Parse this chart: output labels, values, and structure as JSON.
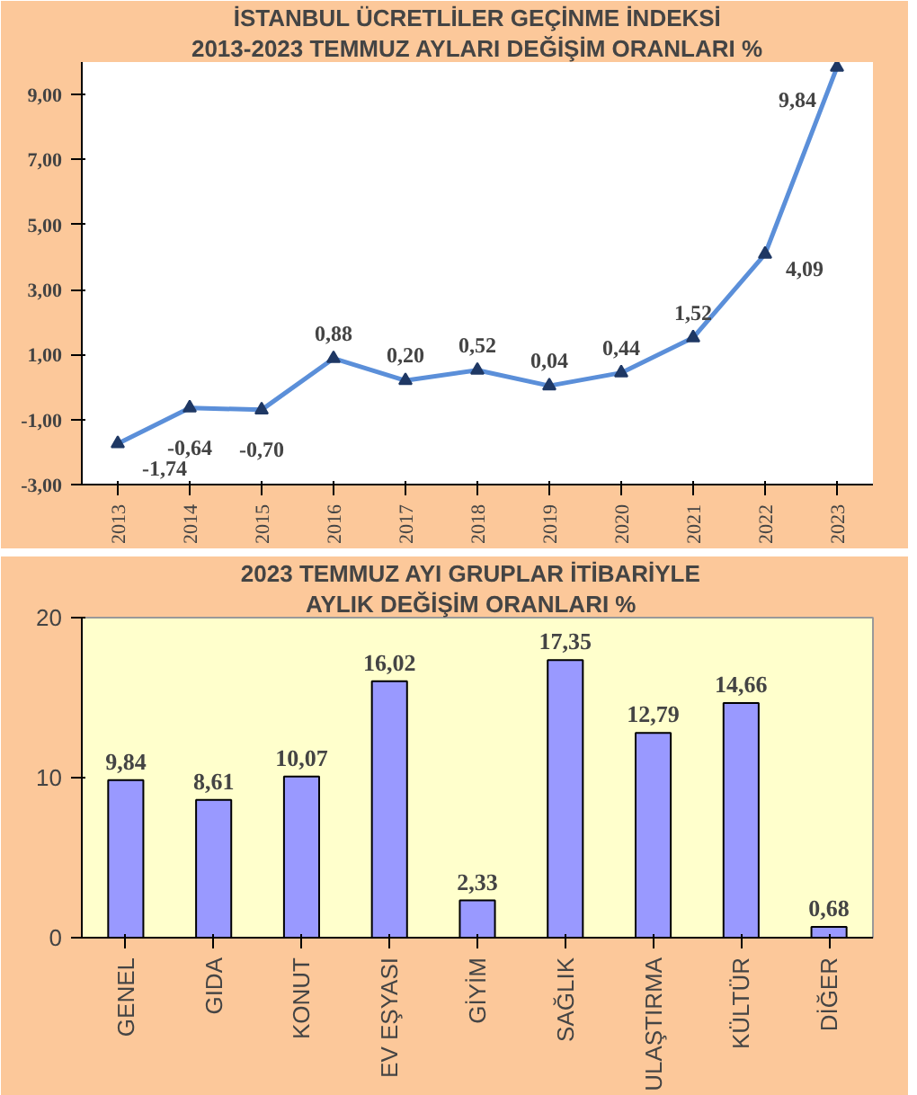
{
  "chart_data": [
    {
      "type": "line",
      "title": "İSTANBUL ÜCRETLİLER GEÇİNME İNDEKSİ",
      "subtitle": "2013-2023 TEMMUZ AYLARI DEĞİŞİM ORANLARI %",
      "categories": [
        "2013",
        "2014",
        "2015",
        "2016",
        "2017",
        "2018",
        "2019",
        "2020",
        "2021",
        "2022",
        "2023"
      ],
      "series": [
        {
          "color": "#5b8fd9",
          "values": [
            -1.74,
            -0.64,
            -0.7,
            0.88,
            0.2,
            0.52,
            0.04,
            0.44,
            1.52,
            4.09,
            9.84
          ],
          "value_labels": [
            "-1,74",
            "-0,64",
            "-0,70",
            "0,88",
            "0,20",
            "0,52",
            "0,04",
            "0,44",
            "1,52",
            "4,09",
            "9,84"
          ]
        }
      ],
      "ylim": [
        -3,
        10
      ],
      "yticks": [
        {
          "value": -3,
          "label": "-3,00"
        },
        {
          "value": -1,
          "label": "-1,00"
        },
        {
          "value": 1,
          "label": "1,00"
        },
        {
          "value": 3,
          "label": "3,00"
        },
        {
          "value": 5,
          "label": "5,00"
        },
        {
          "value": 7,
          "label": "7,00"
        },
        {
          "value": 9,
          "label": "9,00"
        }
      ],
      "marker": "triangle",
      "grid": false
    },
    {
      "type": "bar",
      "title": "2023 TEMMUZ  AYI  GRUPLAR İTİBARİYLE",
      "subtitle": "AYLIK DEĞİŞİM  ORANLARI  %",
      "categories": [
        "GENEL",
        "GIDA",
        "KONUT",
        "EV EŞYASI",
        "GİYİM",
        "SAĞLIK",
        "ULAŞTIRMA",
        "KÜLTÜR",
        "DİĞER"
      ],
      "series": [
        {
          "color": "#9999ff",
          "values": [
            9.84,
            8.61,
            10.07,
            16.02,
            2.33,
            17.35,
            12.79,
            14.66,
            0.68
          ],
          "value_labels": [
            "9,84",
            "8,61",
            "10,07",
            "16,02",
            "2,33",
            "17,35",
            "12,79",
            "14,66",
            "0,68"
          ]
        }
      ],
      "ylim": [
        0,
        20
      ],
      "yticks": [
        0,
        10,
        20
      ],
      "grid": false
    }
  ]
}
